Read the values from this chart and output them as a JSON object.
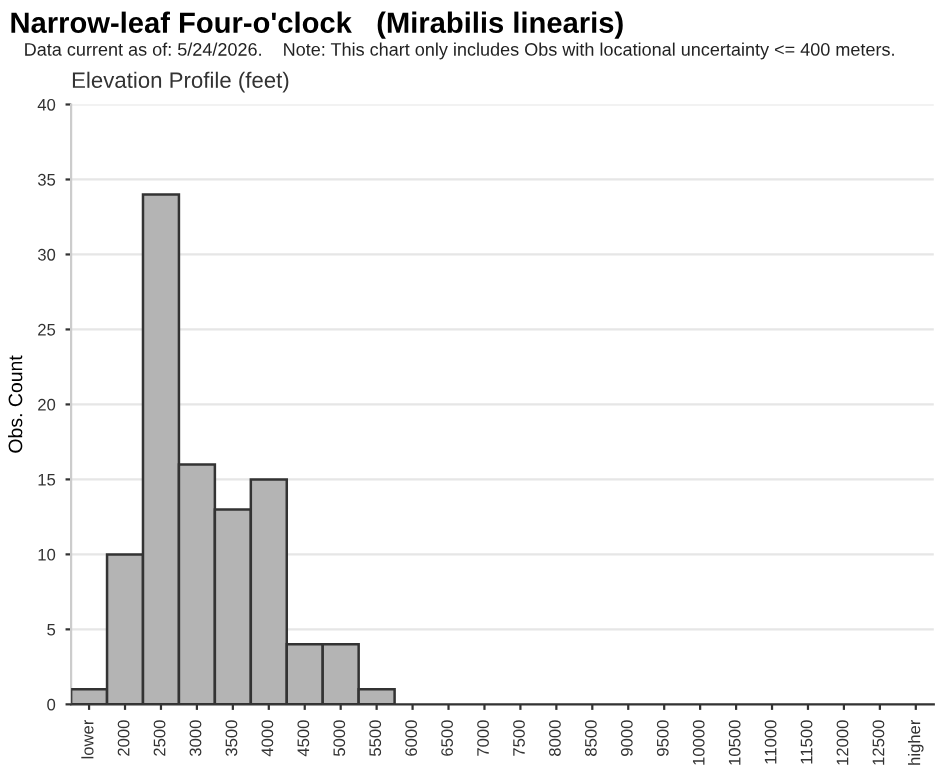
{
  "chart_data": {
    "type": "bar",
    "title": "Narrow-leaf Four-o'clock   (Mirabilis linearis)",
    "annotations": [
      "Data current as of: 5/24/2026.    Note: This chart only includes Obs with locational uncertainty <= 400 meters."
    ],
    "subtitle": "Elevation Profile (feet)",
    "ylabel": "Obs. Count",
    "categories": [
      "lower",
      "2000",
      "2500",
      "3000",
      "3500",
      "4000",
      "4500",
      "5000",
      "5500",
      "6000",
      "6500",
      "7000",
      "7500",
      "8000",
      "8500",
      "9000",
      "9500",
      "10000",
      "10500",
      "11000",
      "11500",
      "12000",
      "12500",
      "higher"
    ],
    "values": [
      1,
      10,
      34,
      16,
      13,
      15,
      4,
      4,
      1,
      0,
      0,
      0,
      0,
      0,
      0,
      0,
      0,
      0,
      0,
      0,
      0,
      0,
      0,
      0
    ],
    "color": "#b4b4b4",
    "ylim": [
      0,
      40
    ],
    "yticks": [
      0,
      5,
      10,
      15,
      20,
      25,
      30,
      35,
      40
    ],
    "grid": "y",
    "legend": false
  }
}
